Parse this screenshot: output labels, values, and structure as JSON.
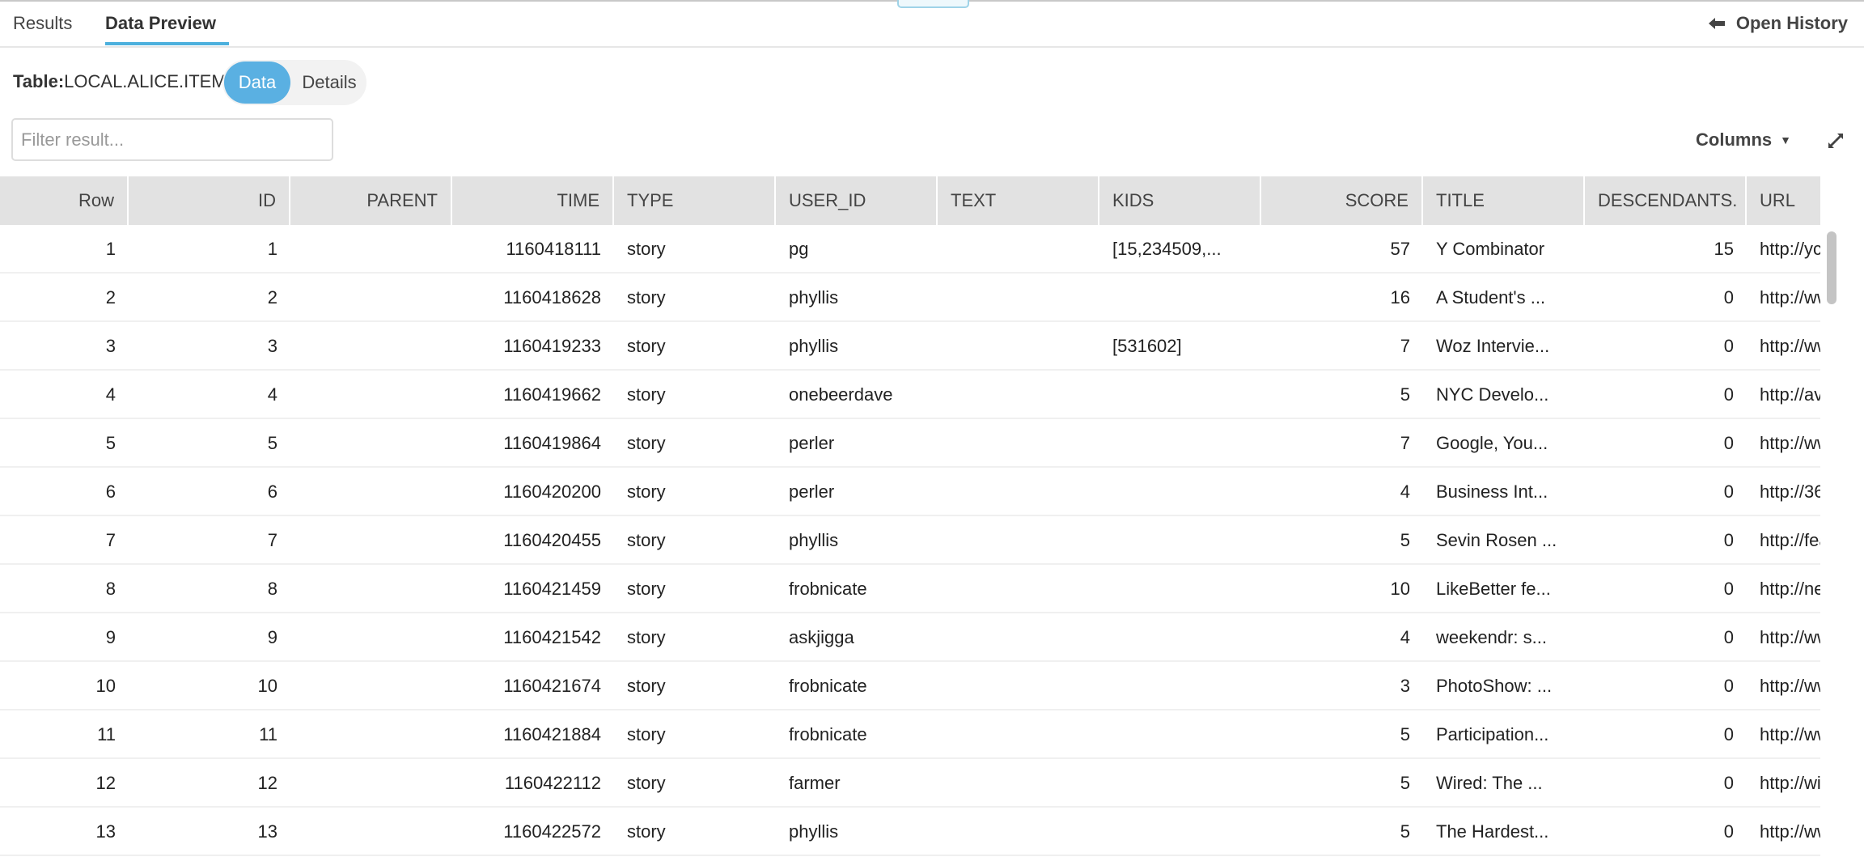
{
  "tabs": [
    {
      "label": "Results",
      "active": false
    },
    {
      "label": "Data Preview",
      "active": true
    }
  ],
  "open_history": {
    "label": "Open History",
    "icon": "arrow-left-icon"
  },
  "table_label": {
    "prefix": "Table:",
    "name": "LOCAL.ALICE.ITEMS"
  },
  "view_toggle": {
    "options": [
      "Data",
      "Details"
    ],
    "selected": "Data"
  },
  "filter": {
    "placeholder": "Filter result...",
    "value": ""
  },
  "columns_button": {
    "label": "Columns",
    "icon": "caret-down-icon"
  },
  "expand_icon": "expand-icon",
  "colors": {
    "accent": "#5ab0e2",
    "header_bg": "#e2e2e2"
  },
  "table": {
    "columns": [
      "Row",
      "ID",
      "PARENT",
      "TIME",
      "TYPE",
      "USER_ID",
      "TEXT",
      "KIDS",
      "SCORE",
      "TITLE",
      "DESCENDANTS.",
      "URL"
    ],
    "rows": [
      [
        "1",
        "1",
        "",
        "1160418111",
        "story",
        "pg",
        "",
        "[15,234509,...",
        "57",
        "Y Combinator",
        "15",
        "http://yco"
      ],
      [
        "2",
        "2",
        "",
        "1160418628",
        "story",
        "phyllis",
        "",
        "",
        "16",
        "A Student's ...",
        "0",
        "http://ww"
      ],
      [
        "3",
        "3",
        "",
        "1160419233",
        "story",
        "phyllis",
        "",
        "[531602]",
        "7",
        "Woz Intervie...",
        "0",
        "http://ww"
      ],
      [
        "4",
        "4",
        "",
        "1160419662",
        "story",
        "onebeerdave",
        "",
        "",
        "5",
        "NYC Develo...",
        "0",
        "http://avc"
      ],
      [
        "5",
        "5",
        "",
        "1160419864",
        "story",
        "perler",
        "",
        "",
        "7",
        "Google, You...",
        "0",
        "http://ww"
      ],
      [
        "6",
        "6",
        "",
        "1160420200",
        "story",
        "perler",
        "",
        "",
        "4",
        "Business Int...",
        "0",
        "http://36"
      ],
      [
        "7",
        "7",
        "",
        "1160420455",
        "story",
        "phyllis",
        "",
        "",
        "5",
        "Sevin Rosen ...",
        "0",
        "http://fea"
      ],
      [
        "8",
        "8",
        "",
        "1160421459",
        "story",
        "frobnicate",
        "",
        "",
        "10",
        "LikeBetter fe...",
        "0",
        "http://new"
      ],
      [
        "9",
        "9",
        "",
        "1160421542",
        "story",
        "askjigga",
        "",
        "",
        "4",
        "weekendr: s...",
        "0",
        "http://ww"
      ],
      [
        "10",
        "10",
        "",
        "1160421674",
        "story",
        "frobnicate",
        "",
        "",
        "3",
        "PhotoShow: ...",
        "0",
        "http://ww"
      ],
      [
        "11",
        "11",
        "",
        "1160421884",
        "story",
        "frobnicate",
        "",
        "",
        "5",
        "Participation...",
        "0",
        "http://ww"
      ],
      [
        "12",
        "12",
        "",
        "1160422112",
        "story",
        "farmer",
        "",
        "",
        "5",
        "Wired: The ...",
        "0",
        "http://wir"
      ],
      [
        "13",
        "13",
        "",
        "1160422572",
        "story",
        "phyllis",
        "",
        "",
        "5",
        "The Hardest...",
        "0",
        "http://ww"
      ]
    ]
  }
}
